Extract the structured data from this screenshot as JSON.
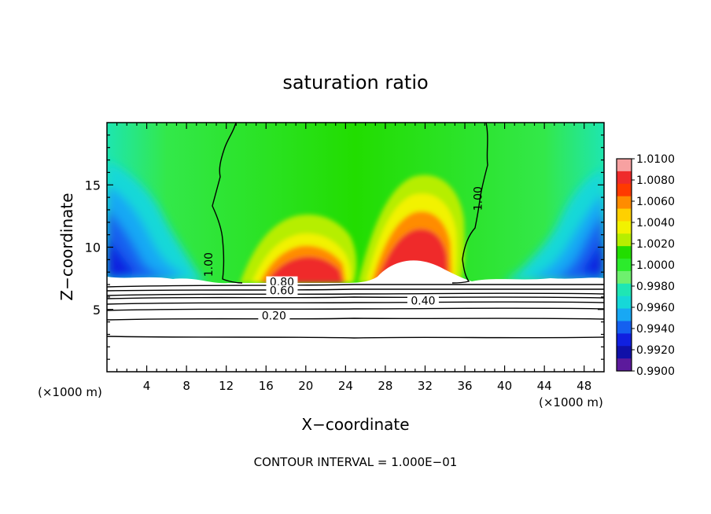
{
  "chart_data": {
    "type": "heatmap",
    "title": "saturation ratio",
    "xlabel": "X−coordinate",
    "ylabel": "Z−coordinate",
    "x_unit_left": "(×1000 m)",
    "x_unit_right": "(×1000 m)",
    "footer": "CONTOUR INTERVAL = 1.000E−01",
    "xlim": [
      0,
      50
    ],
    "ylim": [
      0,
      20
    ],
    "x_ticks": [
      4,
      8,
      12,
      16,
      20,
      24,
      28,
      32,
      36,
      40,
      44,
      48
    ],
    "x_tick_labels": [
      "4",
      "8",
      "12",
      "16",
      "20",
      "24",
      "28",
      "32",
      "36",
      "40",
      "44",
      "48"
    ],
    "y_ticks": [
      5,
      10,
      15
    ],
    "y_tick_labels": [
      "5",
      "10",
      "15"
    ],
    "colorbar": {
      "min": 0.99,
      "max": 1.01,
      "labels": [
        "1.0100",
        "1.0080",
        "1.0060",
        "1.0040",
        "1.0020",
        "1.0000",
        "0.9980",
        "0.9960",
        "0.9940",
        "0.9920",
        "0.9900"
      ],
      "colors": [
        "#F7A1A1",
        "#EF2B2B",
        "#FF3A00",
        "#FF8C00",
        "#FFD000",
        "#F2F200",
        "#B6EE00",
        "#22DD00",
        "#2CEB2C",
        "#6EF06E",
        "#1FE6B4",
        "#16D8D8",
        "#18A8F4",
        "#1460F0",
        "#1020E0",
        "#1010A8",
        "#5C1A9C"
      ]
    },
    "contour_labels": [
      {
        "text": "1.00",
        "x": 10.6,
        "z": 8.6
      },
      {
        "text": "1.00",
        "x": 37.7,
        "z": 13.9
      },
      {
        "text": "0.80",
        "x": 17.6,
        "z": 6.9
      },
      {
        "text": "0.60",
        "x": 17.6,
        "z": 6.2
      },
      {
        "text": "0.40",
        "x": 31.8,
        "z": 5.4
      },
      {
        "text": "0.20",
        "x": 16.8,
        "z": 4.2
      }
    ]
  }
}
